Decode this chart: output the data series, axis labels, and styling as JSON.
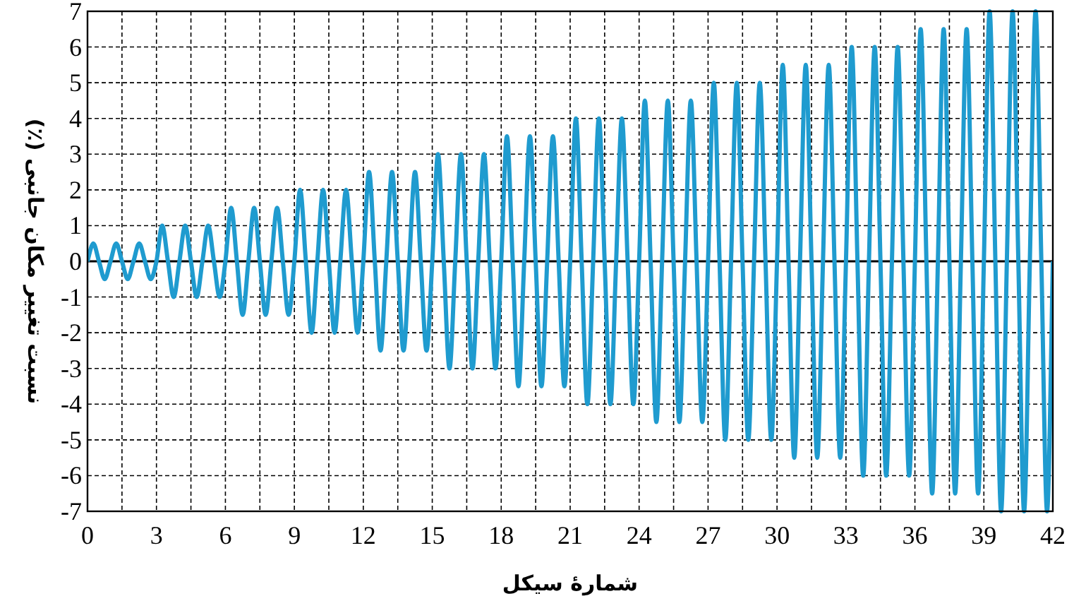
{
  "chart_data": {
    "type": "line",
    "xlabel": "شمارهٔ سیکل",
    "ylabel": "نسبت تغییر مکان جانبی (٪)",
    "xlim": [
      0,
      42
    ],
    "ylim": [
      -7,
      7
    ],
    "xticks": [
      0,
      3,
      6,
      9,
      12,
      15,
      18,
      21,
      24,
      27,
      30,
      33,
      36,
      39,
      42
    ],
    "yticks": [
      -7,
      -6,
      -5,
      -4,
      -3,
      -2,
      -1,
      0,
      1,
      2,
      3,
      4,
      5,
      6,
      7
    ],
    "grid": true,
    "marker": "none",
    "line_style": "solid",
    "ref_lines": [
      {
        "axis": "y",
        "value": 0,
        "color": "#000000"
      }
    ],
    "x": [
      0,
      0.25,
      0.5,
      0.75,
      1,
      1.25,
      1.5,
      1.75,
      2,
      2.25,
      2.5,
      2.75,
      3,
      3.25,
      3.5,
      3.75,
      4,
      4.25,
      4.5,
      4.75,
      5,
      5.25,
      5.5,
      5.75,
      6,
      6.25,
      6.5,
      6.75,
      7,
      7.25,
      7.5,
      7.75,
      8,
      8.25,
      8.5,
      8.75,
      9,
      9.25,
      9.5,
      9.75,
      10,
      10.25,
      10.5,
      10.75,
      11,
      11.25,
      11.5,
      11.75,
      12,
      12.25,
      12.5,
      12.75,
      13,
      13.25,
      13.5,
      13.75,
      14,
      14.25,
      14.5,
      14.75,
      15,
      15.25,
      15.5,
      15.75,
      16,
      16.25,
      16.5,
      16.75,
      17,
      17.25,
      17.5,
      17.75,
      18,
      18.25,
      18.5,
      18.75,
      19,
      19.25,
      19.5,
      19.75,
      20,
      20.25,
      20.5,
      20.75,
      21,
      21.25,
      21.5,
      21.75,
      22,
      22.25,
      22.5,
      22.75,
      23,
      23.25,
      23.5,
      23.75,
      24,
      24.25,
      24.5,
      24.75,
      25,
      25.25,
      25.5,
      25.75,
      26,
      26.25,
      26.5,
      26.75,
      27,
      27.25,
      27.5,
      27.75,
      28,
      28.25,
      28.5,
      28.75,
      29,
      29.25,
      29.5,
      29.75,
      30,
      30.25,
      30.5,
      30.75,
      31,
      31.25,
      31.5,
      31.75,
      32,
      32.25,
      32.5,
      32.75,
      33,
      33.25,
      33.5,
      33.75,
      34,
      34.25,
      34.5,
      34.75,
      35,
      35.25,
      35.5,
      35.75,
      36,
      36.25,
      36.5,
      36.75,
      37,
      37.25,
      37.5,
      37.75,
      38,
      38.25,
      38.5,
      38.75,
      39,
      39.25,
      39.5,
      39.75,
      40,
      40.25,
      40.5,
      40.75,
      41,
      41.25,
      41.5,
      41.75,
      42
    ],
    "series": [
      {
        "color": "#1f9bcf",
        "values": [
          0,
          0.5,
          0,
          -0.5,
          0,
          0.5,
          0,
          -0.5,
          0,
          0.5,
          0,
          -0.5,
          0,
          1,
          0,
          -1,
          0,
          1,
          0,
          -1,
          0,
          1,
          0,
          -1,
          0,
          1.5,
          0,
          -1.5,
          0,
          1.5,
          0,
          -1.5,
          0,
          1.5,
          0,
          -1.5,
          0,
          2,
          0,
          -2,
          0,
          2,
          0,
          -2,
          0,
          2,
          0,
          -2,
          0,
          2.5,
          0,
          -2.5,
          0,
          2.5,
          0,
          -2.5,
          0,
          2.5,
          0,
          -2.5,
          0,
          3,
          0,
          -3,
          0,
          3,
          0,
          -3,
          0,
          3,
          0,
          -3,
          0,
          3.5,
          0,
          -3.5,
          0,
          3.5,
          0,
          -3.5,
          0,
          3.5,
          0,
          -3.5,
          0,
          4,
          0,
          -4,
          0,
          4,
          0,
          -4,
          0,
          4,
          0,
          -4,
          0,
          4.5,
          0,
          -4.5,
          0,
          4.5,
          0,
          -4.5,
          0,
          4.5,
          0,
          -4.5,
          0,
          5,
          0,
          -5,
          0,
          5,
          0,
          -5,
          0,
          5,
          0,
          -5,
          0,
          5.5,
          0,
          -5.5,
          0,
          5.5,
          0,
          -5.5,
          0,
          5.5,
          0,
          -5.5,
          0,
          6,
          0,
          -6,
          0,
          6,
          0,
          -6,
          0,
          6,
          0,
          -6,
          0,
          6.5,
          0,
          -6.5,
          0,
          6.5,
          0,
          -6.5,
          0,
          6.5,
          0,
          -6.5,
          0,
          7,
          0,
          -7,
          0,
          7,
          0,
          -7,
          0,
          7,
          0,
          -7,
          0
        ]
      }
    ]
  }
}
